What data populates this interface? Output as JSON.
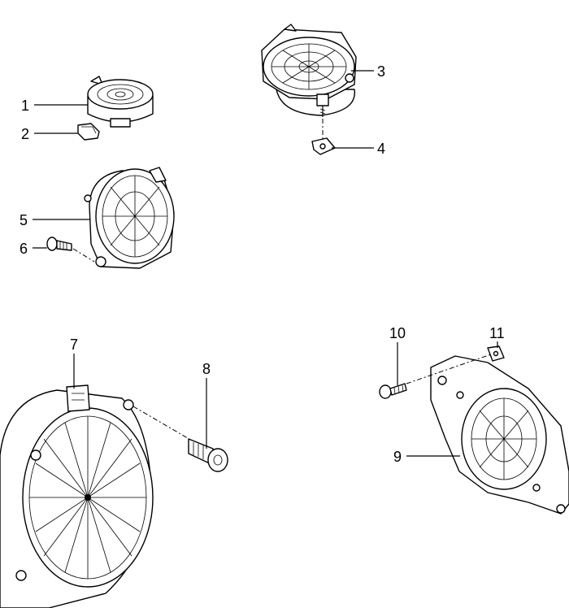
{
  "callouts": [
    {
      "id": "1",
      "label": "1"
    },
    {
      "id": "2",
      "label": "2"
    },
    {
      "id": "3",
      "label": "3"
    },
    {
      "id": "4",
      "label": "4"
    },
    {
      "id": "5",
      "label": "5"
    },
    {
      "id": "6",
      "label": "6"
    },
    {
      "id": "7",
      "label": "7"
    },
    {
      "id": "8",
      "label": "8"
    },
    {
      "id": "9",
      "label": "9"
    },
    {
      "id": "10",
      "label": "10"
    },
    {
      "id": "11",
      "label": "11"
    }
  ]
}
